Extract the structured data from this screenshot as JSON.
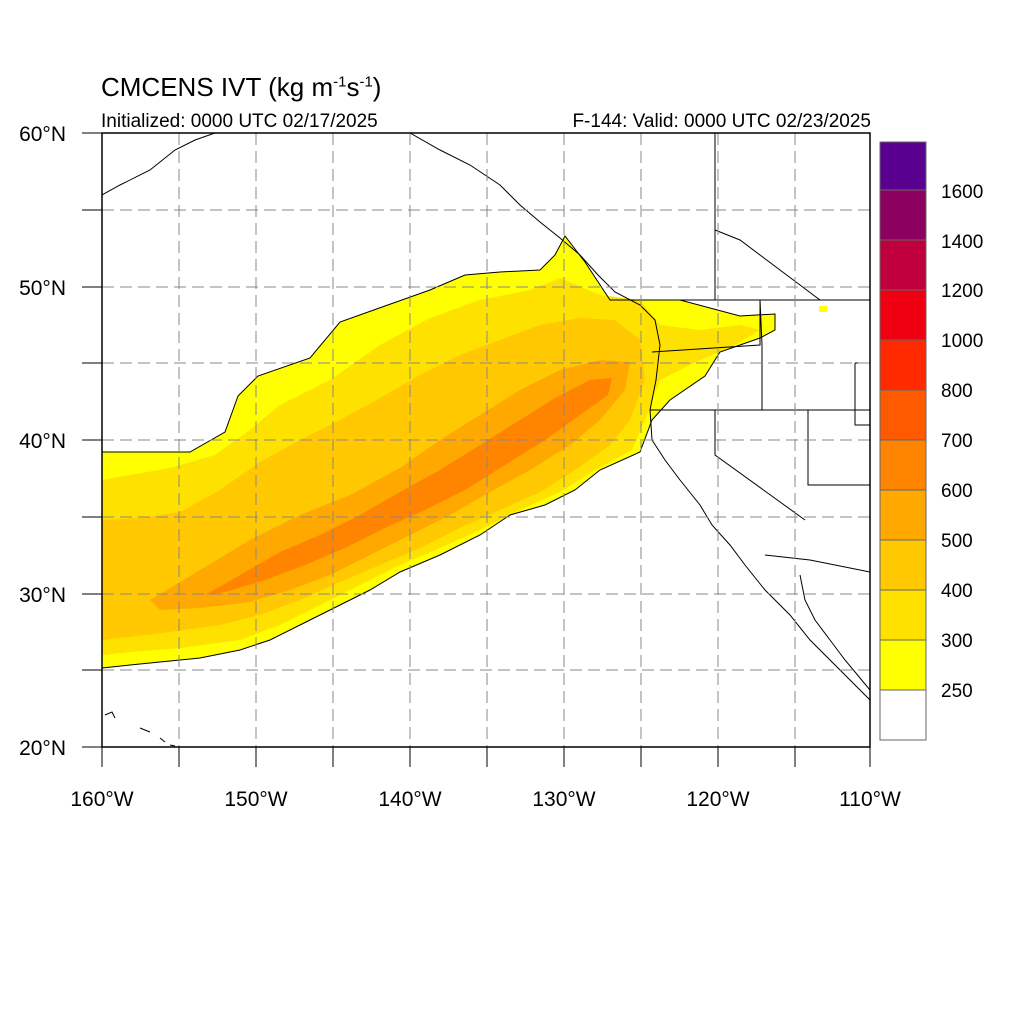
{
  "header": {
    "title_main": "CMCENS IVT (kg m",
    "title_exp1": "-1",
    "title_mid": "s",
    "title_exp2": "-1",
    "title_end": ")",
    "initialized": "Initialized: 0000 UTC 02/17/2025",
    "valid": "F-144: Valid: 0000 UTC 02/23/2025"
  },
  "map": {
    "lat_labels": [
      "60°N",
      "50°N",
      "40°N",
      "30°N",
      "20°N"
    ],
    "lon_labels": [
      "160°W",
      "150°W",
      "140°W",
      "130°W",
      "120°W",
      "110°W"
    ],
    "lat_range": [
      20,
      60
    ],
    "lon_range": [
      -160,
      -110
    ],
    "grid": "dashed",
    "projection": "cylindrical equidistant"
  },
  "colorbar": {
    "labels": [
      "1600",
      "1400",
      "1200",
      "1000",
      "800",
      "700",
      "600",
      "500",
      "400",
      "300",
      "250"
    ],
    "colors": [
      "#ffffff",
      "#ffff00",
      "#ffe100",
      "#ffc800",
      "#ffa800",
      "#ff8400",
      "#ff5a00",
      "#ff2a00",
      "#ee0010",
      "#c0003c",
      "#8c0060",
      "#5a0090"
    ]
  },
  "chart_data": {
    "type": "heatmap",
    "variable": "IVT",
    "units": "kg m-1 s-1",
    "bands": [
      {
        "min": 250,
        "max": 300,
        "color": "#ffff00"
      },
      {
        "min": 300,
        "max": 400,
        "color": "#ffe100"
      },
      {
        "min": 400,
        "max": 500,
        "color": "#ffc800"
      },
      {
        "min": 500,
        "max": 600,
        "color": "#ffa800"
      },
      {
        "min": 600,
        "max": 700,
        "color": "#ff8400"
      }
    ],
    "max_value_approx": 700
  }
}
